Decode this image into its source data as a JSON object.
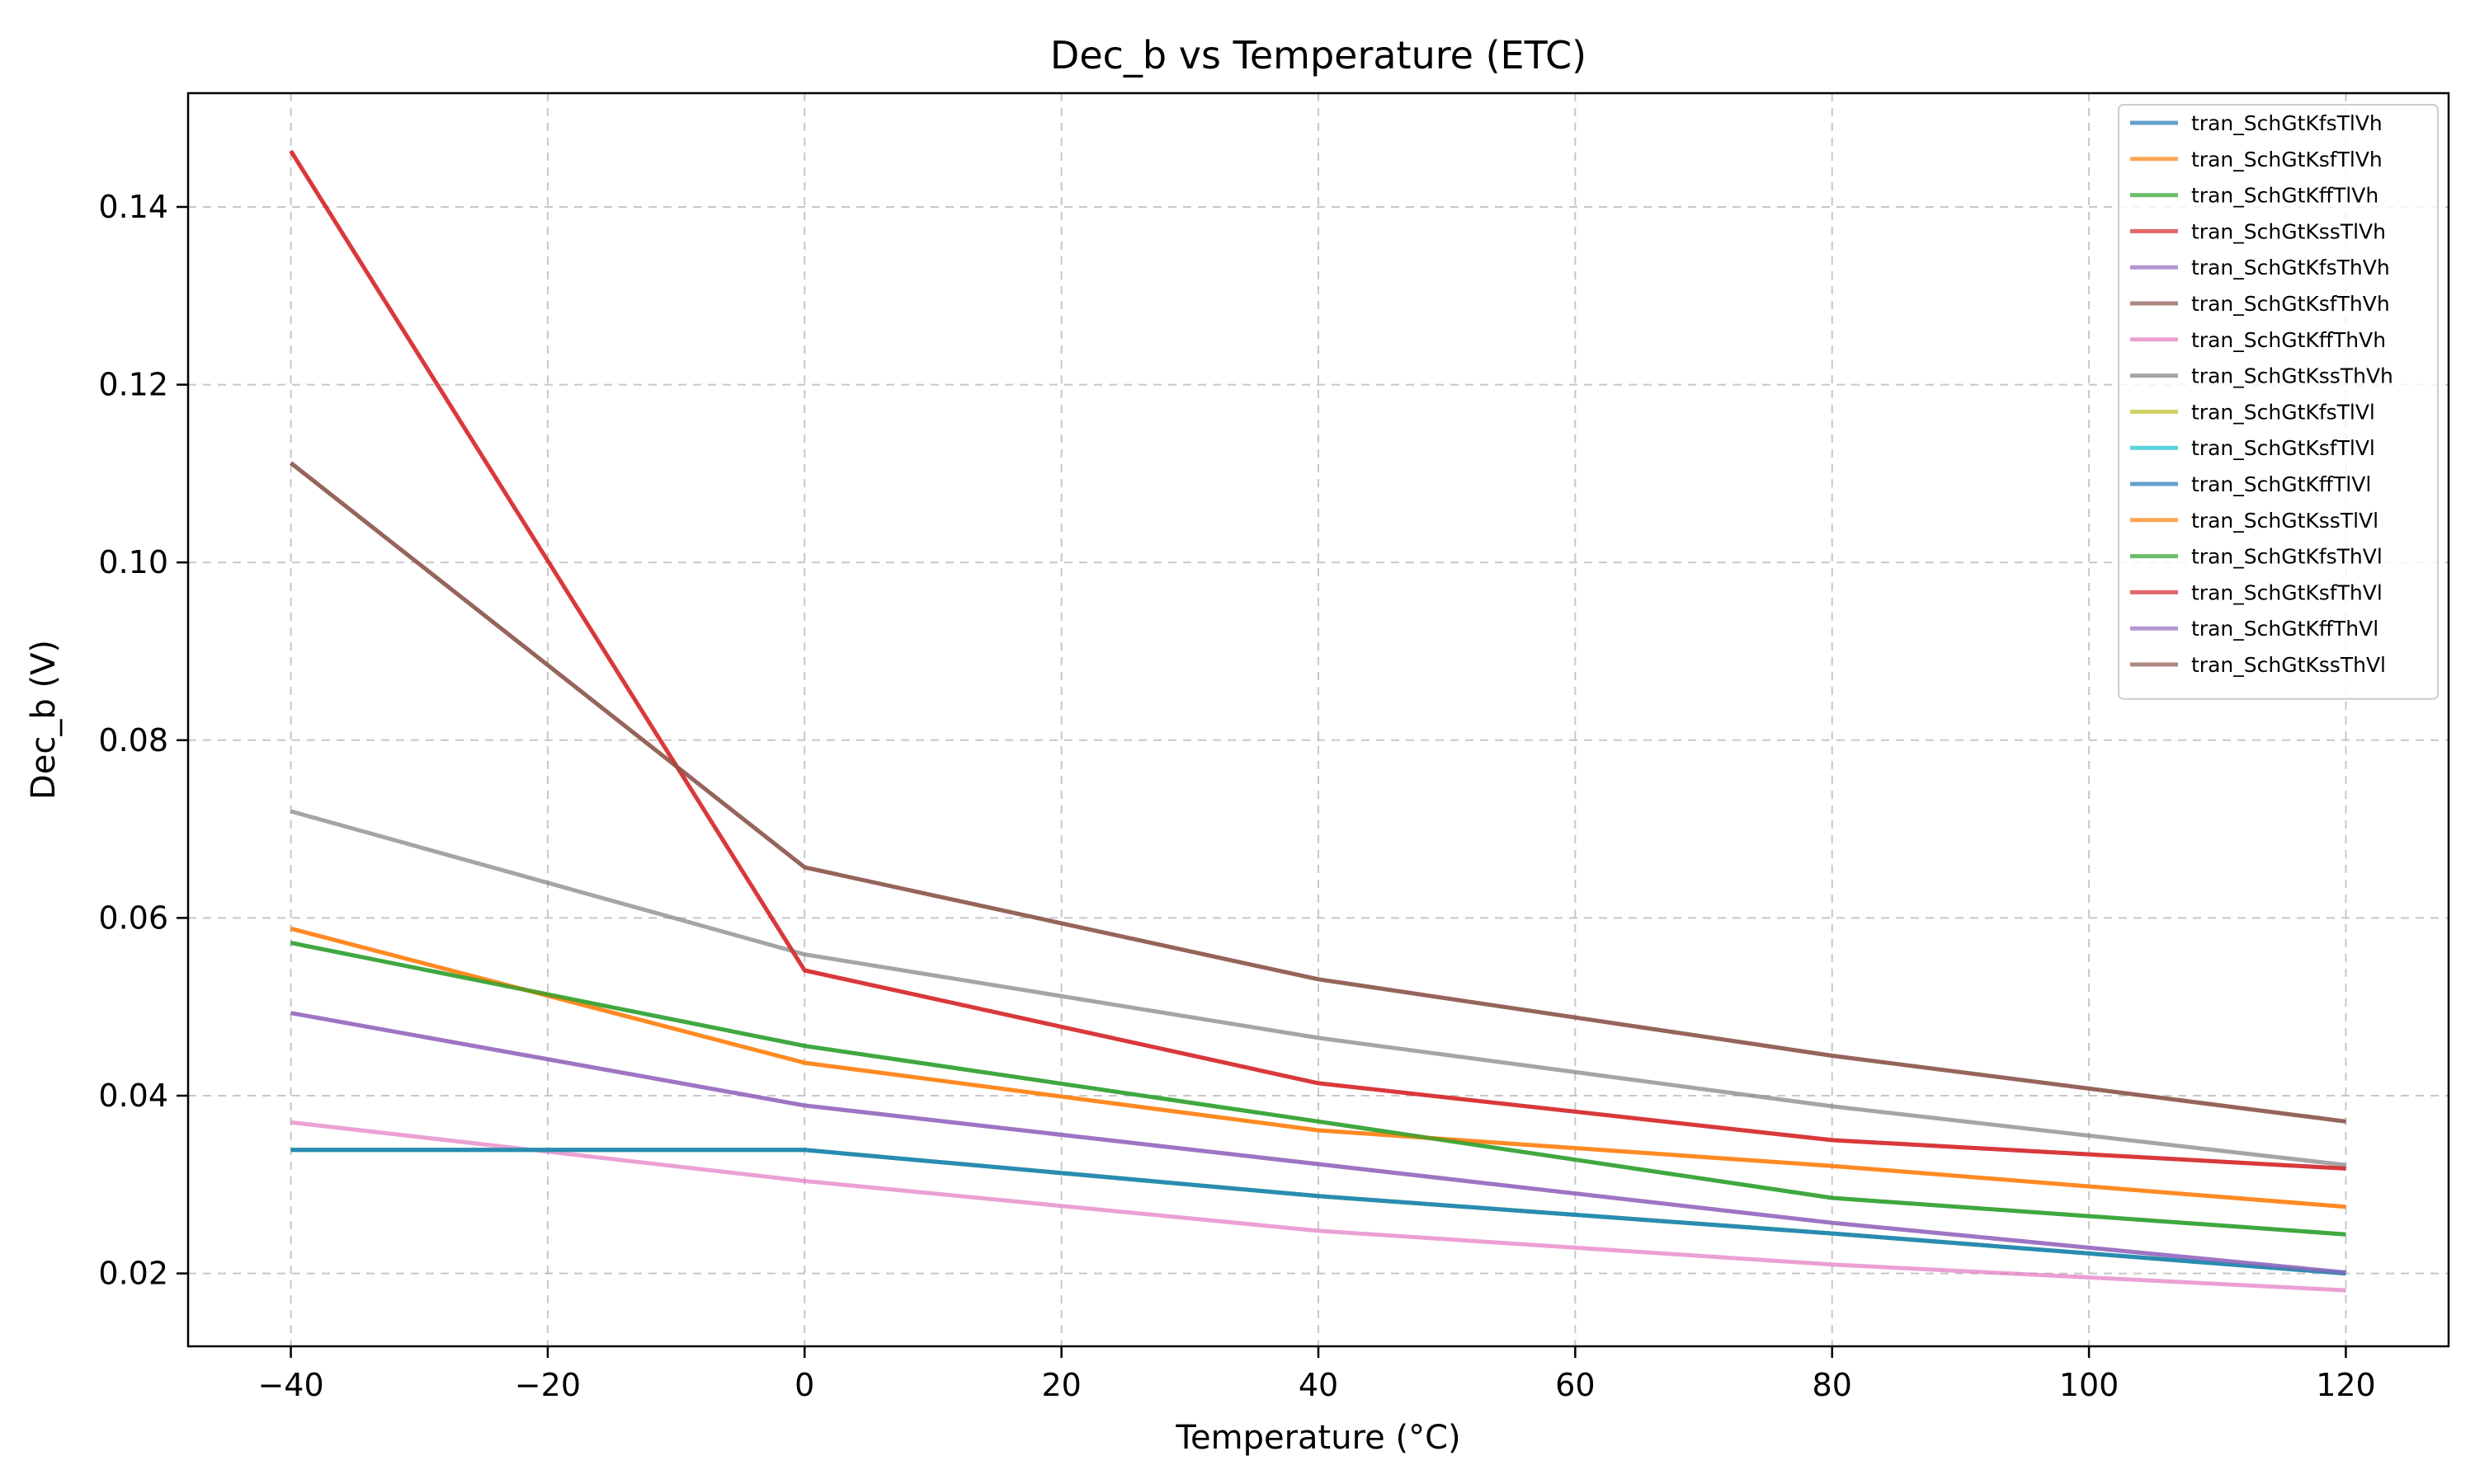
{
  "chart_data": {
    "type": "line",
    "title": "Dec_b vs Temperature (ETC)",
    "xlabel": "Temperature (°C)",
    "ylabel": "Dec_b (V)",
    "xlim": [
      -48,
      128
    ],
    "ylim": [
      0.0118,
      0.1528
    ],
    "xticks": [
      -40,
      -20,
      0,
      20,
      40,
      60,
      80,
      100,
      120
    ],
    "xtick_labels": [
      "−40",
      "−20",
      "0",
      "20",
      "40",
      "60",
      "80",
      "100",
      "120"
    ],
    "yticks": [
      0.02,
      0.04,
      0.06,
      0.08,
      0.1,
      0.12,
      0.14
    ],
    "ytick_labels": [
      "0.02",
      "0.04",
      "0.06",
      "0.08",
      "0.10",
      "0.12",
      "0.14"
    ],
    "grid": true,
    "legend_position": "top-right",
    "x": [
      -40,
      0,
      40,
      80,
      120
    ],
    "series": [
      {
        "name": "tran_SchGtKfsTlVh",
        "color": "#1f77b4",
        "values": [
          0.0339,
          0.0339,
          0.0287,
          0.0245,
          0.02
        ]
      },
      {
        "name": "tran_SchGtKsfTlVh",
        "color": "#ff7f0e",
        "values": [
          0.0588,
          0.0437,
          0.0361,
          0.0321,
          0.0275
        ]
      },
      {
        "name": "tran_SchGtKffTlVh",
        "color": "#2ca02c",
        "values": [
          0.0572,
          0.0456,
          0.0371,
          0.0285,
          0.0244
        ]
      },
      {
        "name": "tran_SchGtKssTlVh",
        "color": "#d62728",
        "values": [
          0.1463,
          0.0541,
          0.0414,
          0.035,
          0.0318
        ]
      },
      {
        "name": "tran_SchGtKfsThVh",
        "color": "#9467bd",
        "values": [
          0.0493,
          0.0389,
          0.0323,
          0.0257,
          0.0201
        ]
      },
      {
        "name": "tran_SchGtKsfThVh",
        "color": "#8c564b",
        "values": [
          0.1112,
          0.0657,
          0.0531,
          0.0445,
          0.0371
        ]
      },
      {
        "name": "tran_SchGtKffThVh",
        "color": "#e377c2",
        "values": [
          0.037,
          0.0304,
          0.0248,
          0.021,
          0.0181
        ]
      },
      {
        "name": "tran_SchGtKssThVh",
        "color": "#7f7f7f",
        "values": [
          0.072,
          0.0559,
          0.0465,
          0.0388,
          0.0322
        ]
      },
      {
        "name": "tran_SchGtKfsTlVl",
        "color": "#bcbd22",
        "values": [
          0.0339,
          0.0339,
          0.0287,
          0.0245,
          0.02
        ]
      },
      {
        "name": "tran_SchGtKsfTlVl",
        "color": "#17becf",
        "values": [
          0.0339,
          0.0339,
          0.0287,
          0.0245,
          0.02
        ]
      },
      {
        "name": "tran_SchGtKffTlVl",
        "color": "#1f77b4",
        "values": [
          0.0339,
          0.0339,
          0.0287,
          0.0245,
          0.02
        ]
      },
      {
        "name": "tran_SchGtKssTlVl",
        "color": "#ff7f0e",
        "values": [
          0.0588,
          0.0437,
          0.0361,
          0.0321,
          0.0275
        ]
      },
      {
        "name": "tran_SchGtKfsThVl",
        "color": "#2ca02c",
        "values": [
          0.0572,
          0.0456,
          0.0371,
          0.0285,
          0.0244
        ]
      },
      {
        "name": "tran_SchGtKsfThVl",
        "color": "#d62728",
        "values": [
          0.1463,
          0.0541,
          0.0414,
          0.035,
          0.0318
        ]
      },
      {
        "name": "tran_SchGtKffThVl",
        "color": "#9467bd",
        "values": [
          0.0493,
          0.0389,
          0.0323,
          0.0257,
          0.0201
        ]
      },
      {
        "name": "tran_SchGtKssThVl",
        "color": "#8c564b",
        "values": [
          0.1112,
          0.0657,
          0.0531,
          0.0445,
          0.0371
        ]
      }
    ]
  }
}
